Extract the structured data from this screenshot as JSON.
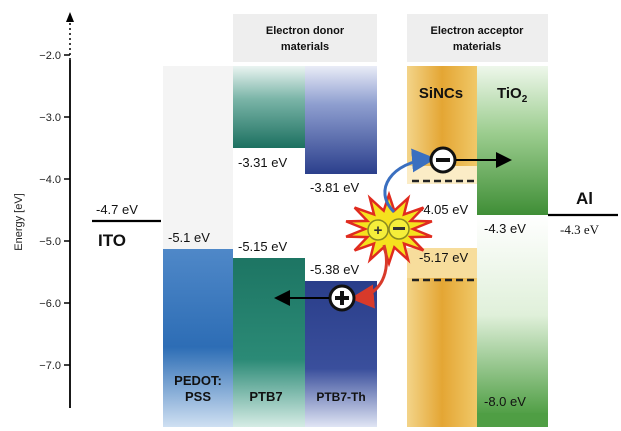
{
  "axis": {
    "ylabel": "Energy [eV]",
    "ticks": [
      "−2.0",
      "−3.0",
      "−4.0",
      "−5.0",
      "−6.0",
      "−7.0"
    ]
  },
  "headers": {
    "donor": "Electron donor materials",
    "acceptor": "Electron acceptor materials"
  },
  "ito": {
    "name": "ITO",
    "level": "-4.7 eV"
  },
  "pedot": {
    "name_line1": "PEDOT:",
    "name_line2": "PSS",
    "homo": "-5.1 eV"
  },
  "ptb7": {
    "name": "PTB7",
    "lumo": "-3.31 eV",
    "homo": "-5.15 eV"
  },
  "ptb7th": {
    "name": "PTB7-Th",
    "lumo": "-3.81 eV",
    "homo": "-5.38 eV"
  },
  "sincs": {
    "name": "SiNCs",
    "lumo": "-4.05 eV",
    "homo": "-5.17 eV"
  },
  "tio2": {
    "name_main": "TiO",
    "name_sub": "2",
    "cb": "-4.3 eV",
    "vb": "-8.0 eV"
  },
  "al": {
    "name": "Al",
    "level": "-4.3 eV"
  },
  "colors": {
    "pedot": "#2a6fb8",
    "ptb7": "#1f7a6a",
    "ptb7th": "#2b3f8c",
    "sincs": "#d9a032",
    "tio2": "#5aa64a",
    "arrow_blue": "#3a6fc0",
    "arrow_red": "#d83a2a",
    "burst": "#f5e21e"
  }
}
